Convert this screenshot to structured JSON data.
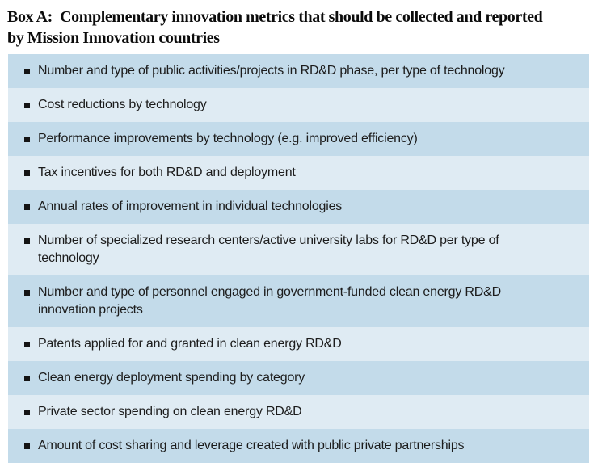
{
  "title": {
    "line1": "Box A:  Complementary innovation metrics that should be collected and reported",
    "line2": "by Mission Innovation countries"
  },
  "box": {
    "items": [
      "Number and type of public activities/projects in RD&D phase, per type of technology",
      "Cost reductions by technology",
      "Performance improvements by technology (e.g. improved efficiency)",
      "Tax incentives for both RD&D and deployment",
      "Annual rates of improvement in individual technologies",
      "Number of specialized research centers/active university labs for RD&D per type of\ntechnology",
      "Number and type of personnel engaged in government-funded clean energy RD&D\ninnovation projects",
      "Patents applied for and granted in clean energy RD&D",
      "Clean energy deployment spending by category",
      "Private sector spending on clean energy RD&D",
      "Amount of cost sharing and leverage created with public private partnerships"
    ]
  },
  "colors": {
    "stripe_dark": "#c3dbea",
    "stripe_light": "#dfebf3",
    "bullet": "#141414",
    "text": "#1c1c1c",
    "title_text": "#0b0b0b"
  }
}
